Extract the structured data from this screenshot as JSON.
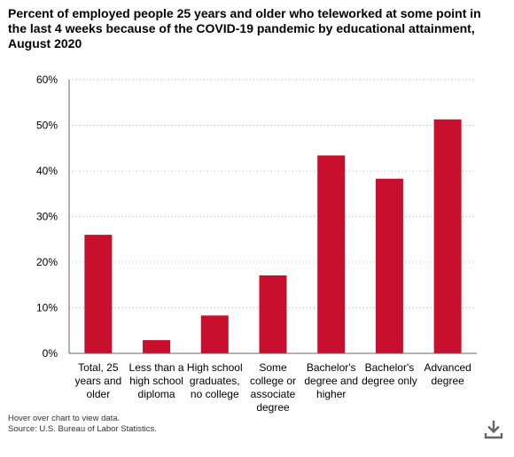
{
  "title": "Percent of employed people 25 years and older who teleworked at some point in the last 4 weeks because of the COVID-19 pandemic by educational attainment, August 2020",
  "footnotes": {
    "hover_note": "Hover over chart to view data.",
    "source": "Source: U.S. Bureau of Labor Statistics."
  },
  "icons": {
    "download": "download-icon"
  },
  "colors": {
    "bar": "#c8102e",
    "grid": "#bbbbbb",
    "axis": "#666666"
  },
  "chart_data": {
    "type": "bar",
    "title": "Percent of employed people 25 years and older who teleworked at some point in the last 4 weeks because of the COVID-19 pandemic by educational attainment, August 2020",
    "categories": [
      "Total, 25 years and older",
      "Less than a high school diploma",
      "High school graduates, no college",
      "Some college or associate degree",
      "Bachelor's degree and higher",
      "Bachelor's degree only",
      "Advanced degree"
    ],
    "category_lines": [
      [
        "Total, 25",
        "years and",
        "older"
      ],
      [
        "Less than a",
        "high school",
        "diploma"
      ],
      [
        "High school",
        "graduates,",
        "no college"
      ],
      [
        "Some",
        "college or",
        "associate",
        "degree"
      ],
      [
        "Bachelor's",
        "degree and",
        "higher"
      ],
      [
        "Bachelor's",
        "degree only"
      ],
      [
        "Advanced",
        "degree"
      ]
    ],
    "values": [
      26.0,
      2.9,
      8.3,
      17.1,
      43.4,
      38.3,
      51.3
    ],
    "ylim": [
      0,
      60
    ],
    "yticks": [
      0,
      10,
      20,
      30,
      40,
      50,
      60
    ],
    "ytick_labels": [
      "0%",
      "10%",
      "20%",
      "30%",
      "40%",
      "50%",
      "60%"
    ],
    "grid": true,
    "legend": "none",
    "xlabel": "",
    "ylabel": ""
  }
}
